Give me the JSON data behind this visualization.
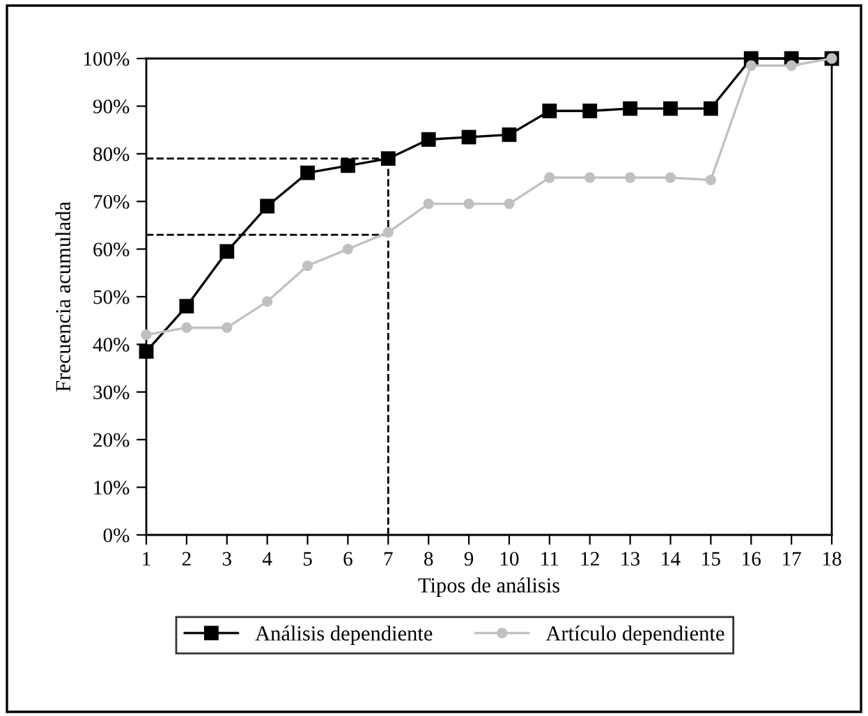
{
  "chart_data": {
    "type": "line",
    "xlabel": "Tipos de análisis",
    "ylabel": "Frecuencia acumulada",
    "x": [
      1,
      2,
      3,
      4,
      5,
      6,
      7,
      8,
      9,
      10,
      11,
      12,
      13,
      14,
      15,
      16,
      17,
      18
    ],
    "xlim": [
      1,
      18
    ],
    "xticks": [
      1,
      2,
      3,
      4,
      5,
      6,
      7,
      8,
      9,
      10,
      11,
      12,
      13,
      14,
      15,
      16,
      17,
      18
    ],
    "ylim": [
      0,
      100
    ],
    "yticks": [
      {
        "value": 0,
        "label": "0%"
      },
      {
        "value": 10,
        "label": "10%"
      },
      {
        "value": 20,
        "label": "20%"
      },
      {
        "value": 30,
        "label": "30%"
      },
      {
        "value": 40,
        "label": "40%"
      },
      {
        "value": 50,
        "label": "50%"
      },
      {
        "value": 60,
        "label": "60%"
      },
      {
        "value": 70,
        "label": "70%"
      },
      {
        "value": 80,
        "label": "80%"
      },
      {
        "value": 90,
        "label": "90%"
      },
      {
        "value": 100,
        "label": "100%"
      }
    ],
    "grid": false,
    "legend": "bottom",
    "series": [
      {
        "name": "Análisis dependiente",
        "color": "#000000",
        "marker": "square",
        "values": [
          38.5,
          48,
          59.5,
          69,
          76,
          77.5,
          79,
          83,
          83.5,
          84,
          89,
          89,
          89.5,
          89.5,
          89.5,
          100,
          100,
          100
        ]
      },
      {
        "name": "Artículo dependiente",
        "color": "#c0c0c0",
        "marker": "circle",
        "values": [
          42,
          43.5,
          43.5,
          49,
          56.5,
          60,
          63.5,
          69.5,
          69.5,
          69.5,
          75,
          75,
          75,
          75,
          74.5,
          98.5,
          98.5,
          100
        ]
      }
    ],
    "ref_lines": [
      {
        "axis": "y",
        "value": 79,
        "color": "#000000",
        "line_style": "dashed"
      },
      {
        "axis": "y",
        "value": 63,
        "color": "#000000",
        "line_style": "dashed"
      },
      {
        "axis": "x",
        "value": 7,
        "color": "#000000",
        "line_style": "dashed"
      }
    ]
  }
}
